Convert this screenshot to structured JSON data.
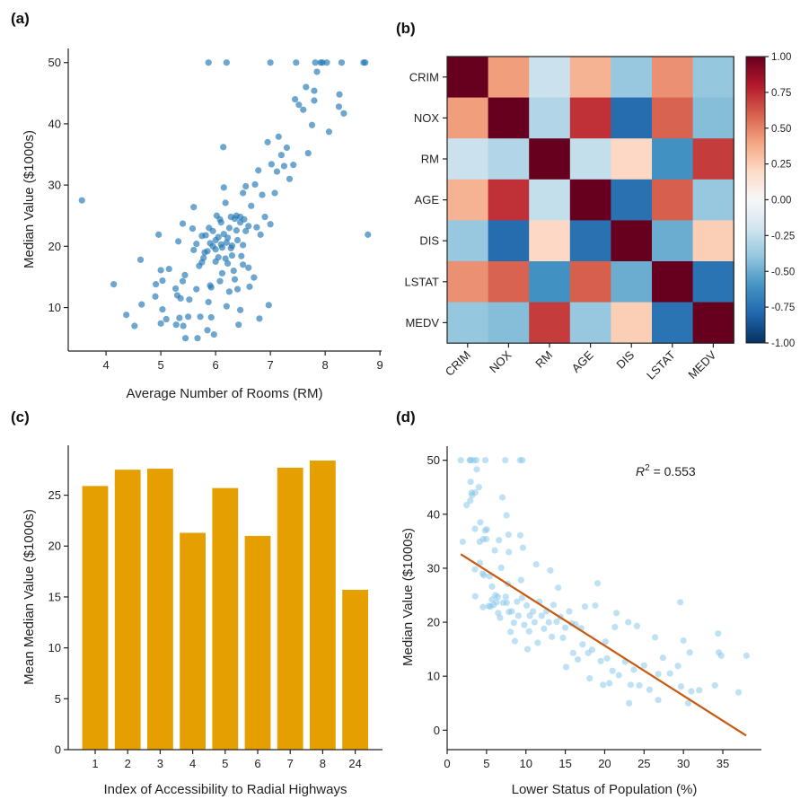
{
  "chart_data": [
    {
      "panel": "(a)",
      "type": "scatter",
      "xlabel": "Average Number of Rooms (RM)",
      "ylabel": "Median Value ($1000s)",
      "xlim": [
        3.31,
        9.03
      ],
      "ylim": [
        2.9,
        52.3
      ],
      "xticks": [
        4,
        5,
        6,
        7,
        8,
        9
      ],
      "yticks": [
        10,
        20,
        30,
        40,
        50
      ],
      "color": "#1f77b4",
      "grid": false,
      "points": [
        [
          3.56,
          27.5
        ],
        [
          4.14,
          13.8
        ],
        [
          4.37,
          8.8
        ],
        [
          4.52,
          7.0
        ],
        [
          4.63,
          17.8
        ],
        [
          4.65,
          10.5
        ],
        [
          4.9,
          11.8
        ],
        [
          4.91,
          13.8
        ],
        [
          4.96,
          21.9
        ],
        [
          5.0,
          16.1
        ],
        [
          5.0,
          7.4
        ],
        [
          5.03,
          14.4
        ],
        [
          5.03,
          9.7
        ],
        [
          5.1,
          8.1
        ],
        [
          5.15,
          16.3
        ],
        [
          5.27,
          13.1
        ],
        [
          5.28,
          7.2
        ],
        [
          5.3,
          12.0
        ],
        [
          5.32,
          20.8
        ],
        [
          5.34,
          8.3
        ],
        [
          5.36,
          11.5
        ],
        [
          5.4,
          14.3
        ],
        [
          5.4,
          23.7
        ],
        [
          5.41,
          7.0
        ],
        [
          5.44,
          15.3
        ],
        [
          5.45,
          5.0
        ],
        [
          5.5,
          8.5
        ],
        [
          5.52,
          11.3
        ],
        [
          5.6,
          26.4
        ],
        [
          5.6,
          19.4
        ],
        [
          5.58,
          22.9
        ],
        [
          5.65,
          13.0
        ],
        [
          5.67,
          5.0
        ],
        [
          5.72,
          8.5
        ],
        [
          5.75,
          17.4
        ],
        [
          5.8,
          19.0
        ],
        [
          5.82,
          21.8
        ],
        [
          5.85,
          6.3
        ],
        [
          5.87,
          50
        ],
        [
          5.87,
          10.9
        ],
        [
          5.9,
          13.6
        ],
        [
          5.92,
          8.4
        ],
        [
          5.95,
          20.0
        ],
        [
          5.97,
          5.6
        ],
        [
          6.0,
          21.0
        ],
        [
          6.05,
          18.2
        ],
        [
          6.08,
          14.3
        ],
        [
          6.1,
          23.9
        ],
        [
          6.12,
          19.8
        ],
        [
          6.14,
          36.2
        ],
        [
          6.15,
          29.6
        ],
        [
          6.18,
          27.1
        ],
        [
          6.2,
          50
        ],
        [
          6.2,
          10.2
        ],
        [
          6.22,
          21.4
        ],
        [
          6.25,
          12.6
        ],
        [
          6.28,
          24.8
        ],
        [
          6.3,
          20.1
        ],
        [
          6.33,
          16.0
        ],
        [
          6.38,
          22.6
        ],
        [
          6.4,
          13.0
        ],
        [
          6.42,
          7.2
        ],
        [
          6.45,
          9.6
        ],
        [
          6.47,
          18.4
        ],
        [
          6.5,
          28.7
        ],
        [
          6.52,
          24.4
        ],
        [
          6.55,
          29.8
        ],
        [
          6.6,
          23.3
        ],
        [
          6.62,
          13.4
        ],
        [
          6.65,
          26.6
        ],
        [
          6.7,
          14.9
        ],
        [
          6.72,
          30.1
        ],
        [
          6.75,
          23.1
        ],
        [
          6.78,
          32.4
        ],
        [
          6.8,
          8.2
        ],
        [
          6.82,
          21.9
        ],
        [
          6.85,
          28.4
        ],
        [
          6.9,
          24.8
        ],
        [
          6.95,
          37.0
        ],
        [
          6.97,
          10.4
        ],
        [
          7.0,
          50
        ],
        [
          7.0,
          23.6
        ],
        [
          7.02,
          33.4
        ],
        [
          7.08,
          28.7
        ],
        [
          7.12,
          32.2
        ],
        [
          7.15,
          37.9
        ],
        [
          7.2,
          34.9
        ],
        [
          7.25,
          33.1
        ],
        [
          7.3,
          36.1
        ],
        [
          7.35,
          31.0
        ],
        [
          7.42,
          33.3
        ],
        [
          7.45,
          44.0
        ],
        [
          7.47,
          50
        ],
        [
          7.52,
          43.1
        ],
        [
          7.6,
          42.3
        ],
        [
          7.65,
          46.0
        ],
        [
          7.69,
          35.2
        ],
        [
          7.76,
          39.8
        ],
        [
          7.8,
          45.4
        ],
        [
          7.8,
          43.8
        ],
        [
          7.82,
          50
        ],
        [
          7.85,
          48.5
        ],
        [
          7.92,
          50
        ],
        [
          7.95,
          50
        ],
        [
          8.03,
          50
        ],
        [
          8.07,
          38.7
        ],
        [
          8.25,
          42.8
        ],
        [
          8.26,
          44.8
        ],
        [
          8.3,
          50
        ],
        [
          8.34,
          41.7
        ],
        [
          8.7,
          50
        ],
        [
          8.73,
          50
        ],
        [
          8.78,
          21.9
        ],
        [
          5.9,
          20.5
        ],
        [
          6.0,
          19.5
        ],
        [
          6.05,
          21.5
        ],
        [
          6.1,
          20.3
        ],
        [
          6.15,
          22.0
        ],
        [
          6.2,
          20.6
        ],
        [
          5.95,
          22.5
        ],
        [
          6.25,
          23.0
        ],
        [
          6.35,
          24.5
        ],
        [
          6.4,
          21.0
        ],
        [
          6.3,
          18.5
        ],
        [
          5.85,
          19.2
        ],
        [
          6.08,
          24.4
        ],
        [
          6.0,
          17.5
        ],
        [
          5.7,
          16.8
        ],
        [
          6.5,
          17.0
        ],
        [
          6.55,
          22.5
        ],
        [
          6.02,
          25.0
        ],
        [
          5.88,
          23.0
        ],
        [
          6.18,
          18.0
        ],
        [
          6.45,
          23.9
        ],
        [
          6.28,
          19.7
        ],
        [
          5.78,
          18.1
        ],
        [
          6.12,
          15.6
        ],
        [
          5.92,
          13.3
        ],
        [
          6.35,
          14.6
        ],
        [
          6.6,
          16.5
        ],
        [
          6.5,
          20.2
        ],
        [
          6.22,
          17.2
        ],
        [
          5.65,
          20.4
        ],
        [
          5.75,
          21.7
        ],
        [
          6.38,
          25.0
        ],
        [
          6.45,
          24.8
        ]
      ]
    },
    {
      "panel": "(b)",
      "type": "heatmap",
      "labels": [
        "CRIM",
        "NOX",
        "RM",
        "AGE",
        "DIS",
        "LSTAT",
        "MEDV"
      ],
      "colormap": "RdBu_r",
      "vlim": [
        -1,
        1
      ],
      "colorbar_ticks": [
        "1.00",
        "0.75",
        "0.50",
        "0.25",
        "0.00",
        "-0.25",
        "-0.50",
        "-0.75",
        "-1.00"
      ],
      "matrix": [
        [
          1.0,
          0.42,
          -0.22,
          0.35,
          -0.38,
          0.46,
          -0.39
        ],
        [
          0.42,
          1.0,
          -0.3,
          0.73,
          -0.77,
          0.59,
          -0.43
        ],
        [
          -0.22,
          -0.3,
          1.0,
          -0.24,
          0.21,
          -0.61,
          0.7
        ],
        [
          0.35,
          0.73,
          -0.24,
          1.0,
          -0.75,
          0.6,
          -0.38
        ],
        [
          -0.38,
          -0.77,
          0.21,
          -0.75,
          1.0,
          -0.5,
          0.25
        ],
        [
          0.46,
          0.59,
          -0.61,
          0.6,
          -0.5,
          1.0,
          -0.74
        ],
        [
          -0.39,
          -0.43,
          0.7,
          -0.38,
          0.25,
          -0.74,
          1.0
        ]
      ]
    },
    {
      "panel": "(c)",
      "type": "bar",
      "xlabel": "Index of Accessibility to Radial Highways",
      "ylabel": "Mean Median Value ($1000s)",
      "categories": [
        "1",
        "2",
        "3",
        "4",
        "5",
        "6",
        "7",
        "8",
        "24"
      ],
      "values": [
        25.9,
        27.5,
        27.6,
        21.3,
        25.7,
        21.0,
        27.7,
        28.4,
        15.7
      ],
      "ylim": [
        0,
        29.9
      ],
      "yticks": [
        0,
        5,
        10,
        15,
        20,
        25
      ],
      "color": "#e69f00"
    },
    {
      "panel": "(d)",
      "type": "scatter",
      "xlabel": "Lower Status of Population (%)",
      "ylabel": "Median Value ($1000s)",
      "xlim": [
        0,
        39.9
      ],
      "ylim": [
        -3.6,
        52.6
      ],
      "xticks": [
        0,
        5,
        10,
        15,
        20,
        25,
        30,
        35
      ],
      "yticks": [
        0,
        10,
        20,
        30,
        40,
        50
      ],
      "color": "#7fc4ea",
      "line_color": "#c8590f",
      "annotation": {
        "prefix": "R",
        "sup": "2",
        "text": " = 0.553"
      },
      "fit_line": [
        [
          1.73,
          32.6
        ],
        [
          37.97,
          -1.0
        ]
      ],
      "points": [
        [
          1.73,
          50
        ],
        [
          1.98,
          34.9
        ],
        [
          2.47,
          41.7
        ],
        [
          2.88,
          50
        ],
        [
          2.94,
          42.5
        ],
        [
          2.96,
          50
        ],
        [
          2.98,
          46
        ],
        [
          3.11,
          44.0
        ],
        [
          3.16,
          43.5
        ],
        [
          3.32,
          50
        ],
        [
          3.53,
          37.3
        ],
        [
          3.53,
          29.8
        ],
        [
          3.56,
          24.8
        ],
        [
          3.57,
          44.0
        ],
        [
          3.7,
          50
        ],
        [
          3.76,
          48.3
        ],
        [
          4.03,
          45.0
        ],
        [
          4.14,
          34.9
        ],
        [
          4.16,
          31.0
        ],
        [
          4.21,
          38.5
        ],
        [
          4.5,
          29.0
        ],
        [
          4.56,
          22.8
        ],
        [
          4.59,
          35.4
        ],
        [
          4.69,
          28.7
        ],
        [
          4.82,
          37.0
        ],
        [
          4.85,
          50
        ],
        [
          4.97,
          35.4
        ],
        [
          5.04,
          37.2
        ],
        [
          5.29,
          23.0
        ],
        [
          5.39,
          28.5
        ],
        [
          5.5,
          22.9
        ],
        [
          5.68,
          24.2
        ],
        [
          5.7,
          26.6
        ],
        [
          5.9,
          23.2
        ],
        [
          6.05,
          33.3
        ],
        [
          6.12,
          25.0
        ],
        [
          6.27,
          23.7
        ],
        [
          6.43,
          24.7
        ],
        [
          6.48,
          21.7
        ],
        [
          6.58,
          35.2
        ],
        [
          6.72,
          20.8
        ],
        [
          6.86,
          30.1
        ],
        [
          7.01,
          43.1
        ],
        [
          7.12,
          23.6
        ],
        [
          7.39,
          50
        ],
        [
          7.44,
          24.7
        ],
        [
          7.54,
          39.8
        ],
        [
          7.56,
          23.6
        ],
        [
          7.7,
          27.1
        ],
        [
          7.79,
          36.2
        ],
        [
          7.83,
          33.0
        ],
        [
          7.85,
          21.9
        ],
        [
          8.05,
          18.2
        ],
        [
          8.2,
          22.0
        ],
        [
          8.47,
          19.9
        ],
        [
          8.6,
          16.5
        ],
        [
          8.88,
          23.8
        ],
        [
          9.04,
          21.2
        ],
        [
          9.25,
          50
        ],
        [
          9.28,
          36.1
        ],
        [
          9.38,
          27.8
        ],
        [
          9.5,
          24.5
        ],
        [
          9.55,
          50
        ],
        [
          9.62,
          33.8
        ],
        [
          9.8,
          19.5
        ],
        [
          10.1,
          23.1
        ],
        [
          10.2,
          15.0
        ],
        [
          10.4,
          18.3
        ],
        [
          10.5,
          21.2
        ],
        [
          10.9,
          22.0
        ],
        [
          11.1,
          20.0
        ],
        [
          11.3,
          30.7
        ],
        [
          11.5,
          16.2
        ],
        [
          11.7,
          23.8
        ],
        [
          12.0,
          21.2
        ],
        [
          12.3,
          18.8
        ],
        [
          12.6,
          22.0
        ],
        [
          12.9,
          20.0
        ],
        [
          13.1,
          29.6
        ],
        [
          13.3,
          17.3
        ],
        [
          13.5,
          23.2
        ],
        [
          13.9,
          20.1
        ],
        [
          14.1,
          26.4
        ],
        [
          14.4,
          21.0
        ],
        [
          14.7,
          17.1
        ],
        [
          15.0,
          19.0
        ],
        [
          15.1,
          11.7
        ],
        [
          15.5,
          22.0
        ],
        [
          15.8,
          19.8
        ],
        [
          16.0,
          14.3
        ],
        [
          16.3,
          19.6
        ],
        [
          16.6,
          13.1
        ],
        [
          17.0,
          18.9
        ],
        [
          17.2,
          15.9
        ],
        [
          17.5,
          22.9
        ],
        [
          17.9,
          14.3
        ],
        [
          18.1,
          9.6
        ],
        [
          18.4,
          14.9
        ],
        [
          18.8,
          23.1
        ],
        [
          19.1,
          27.2
        ],
        [
          19.5,
          12.8
        ],
        [
          19.8,
          8.4
        ],
        [
          20.1,
          16.4
        ],
        [
          20.3,
          13.3
        ],
        [
          20.6,
          8.7
        ],
        [
          21.0,
          11.0
        ],
        [
          21.3,
          19.1
        ],
        [
          21.5,
          21.7
        ],
        [
          21.8,
          10.2
        ],
        [
          22.6,
          12.7
        ],
        [
          23.0,
          20.0
        ],
        [
          23.1,
          5.0
        ],
        [
          23.3,
          8.4
        ],
        [
          23.7,
          11.2
        ],
        [
          24.1,
          19.3
        ],
        [
          24.4,
          8.3
        ],
        [
          25.0,
          12.0
        ],
        [
          25.7,
          7.5
        ],
        [
          26.4,
          17.2
        ],
        [
          26.8,
          5.6
        ],
        [
          26.8,
          10.4
        ],
        [
          27.4,
          13.4
        ],
        [
          28.3,
          10.5
        ],
        [
          29.3,
          11.9
        ],
        [
          29.6,
          23.7
        ],
        [
          29.7,
          8.1
        ],
        [
          30.0,
          16.6
        ],
        [
          30.6,
          5.0
        ],
        [
          30.8,
          14.4
        ],
        [
          31.0,
          7.2
        ],
        [
          32.0,
          7.4
        ],
        [
          34.0,
          8.3
        ],
        [
          34.4,
          17.9
        ],
        [
          34.5,
          14.4
        ],
        [
          34.8,
          13.8
        ],
        [
          37.0,
          7.0
        ],
        [
          38.0,
          13.8
        ]
      ]
    }
  ]
}
